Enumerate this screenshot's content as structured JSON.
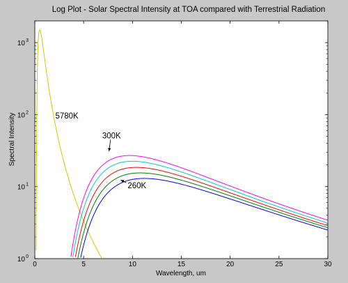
{
  "chart_data": {
    "type": "line",
    "title": "Log Plot - Solar Spectral Intensity at TOA compared with Terrestrial Radiation",
    "xlabel": "Wavelength, um",
    "ylabel": "Spectral Intensity",
    "xlim": [
      0,
      30
    ],
    "ylim": [
      1,
      2000
    ],
    "yscale": "log",
    "grid": false,
    "x_ticks": [
      {
        "value": 0,
        "label": "0"
      },
      {
        "value": 5,
        "label": "5"
      },
      {
        "value": 10,
        "label": "10"
      },
      {
        "value": 15,
        "label": "15"
      },
      {
        "value": 20,
        "label": "20"
      },
      {
        "value": 25,
        "label": "25"
      },
      {
        "value": 30,
        "label": "30"
      }
    ],
    "y_ticks": [
      {
        "value": 1,
        "base": "10",
        "exp": "0"
      },
      {
        "value": 10,
        "base": "10",
        "exp": "1"
      },
      {
        "value": 100,
        "base": "10",
        "exp": "2"
      },
      {
        "value": 1000,
        "base": "10",
        "exp": "3"
      }
    ],
    "series": [
      {
        "color": "#cccc00",
        "peak": 1500,
        "peak_x": 0.5,
        "kind": "solar"
      },
      {
        "color": "#ff00ff",
        "peak": 27,
        "peak_x": 9.7,
        "kind": "terrestrial"
      },
      {
        "color": "#00cccc",
        "peak": 22.5,
        "peak_x": 10.0,
        "kind": "terrestrial"
      },
      {
        "color": "#ff0000",
        "peak": 18.5,
        "peak_x": 10.4,
        "kind": "terrestrial"
      },
      {
        "color": "#008000",
        "peak": 15.5,
        "peak_x": 10.8,
        "kind": "terrestrial"
      },
      {
        "color": "#0000ff",
        "peak": 13,
        "peak_x": 11.2,
        "kind": "terrestrial"
      }
    ],
    "annotations": [
      {
        "text": "5780K",
        "x": 2.1,
        "y": 88,
        "arrow": false
      },
      {
        "text": "300K",
        "x": 6.9,
        "y": 47,
        "arrow": true,
        "arrow_to": [
          7.6,
          31
        ]
      },
      {
        "text": "260K",
        "x": 9.5,
        "y": 9.5,
        "arrow": true,
        "arrow_to": [
          8.8,
          12.3
        ]
      }
    ]
  }
}
